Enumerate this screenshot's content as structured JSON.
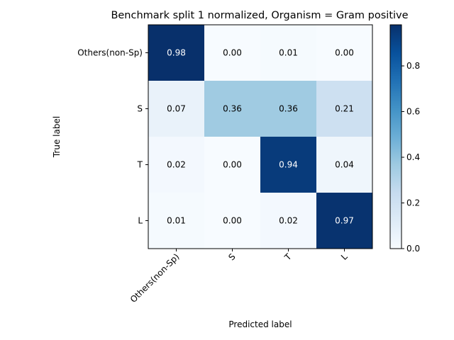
{
  "chart_data": {
    "type": "heatmap",
    "title": "Benchmark split 1 normalized, Organism = Gram positive",
    "xlabel": "Predicted label",
    "ylabel": "True label",
    "x_categories": [
      "Others(non-Sp)",
      "S",
      "T",
      "L"
    ],
    "y_categories": [
      "Others(non-Sp)",
      "S",
      "T",
      "L"
    ],
    "values": [
      [
        0.98,
        0.0,
        0.01,
        0.0
      ],
      [
        0.07,
        0.36,
        0.36,
        0.21
      ],
      [
        0.02,
        0.0,
        0.94,
        0.04
      ],
      [
        0.01,
        0.0,
        0.02,
        0.97
      ]
    ],
    "value_labels": [
      [
        "0.98",
        "0.00",
        "0.01",
        "0.00"
      ],
      [
        "0.07",
        "0.36",
        "0.36",
        "0.21"
      ],
      [
        "0.02",
        "0.00",
        "0.94",
        "0.04"
      ],
      [
        "0.01",
        "0.00",
        "0.02",
        "0.97"
      ]
    ],
    "colormap": "Blues",
    "colorbar": {
      "range": [
        0.0,
        0.98
      ],
      "ticks": [
        0.0,
        0.2,
        0.4,
        0.6,
        0.8
      ],
      "tick_labels": [
        "0.0",
        "0.2",
        "0.4",
        "0.6",
        "0.8"
      ]
    },
    "grid": false
  }
}
